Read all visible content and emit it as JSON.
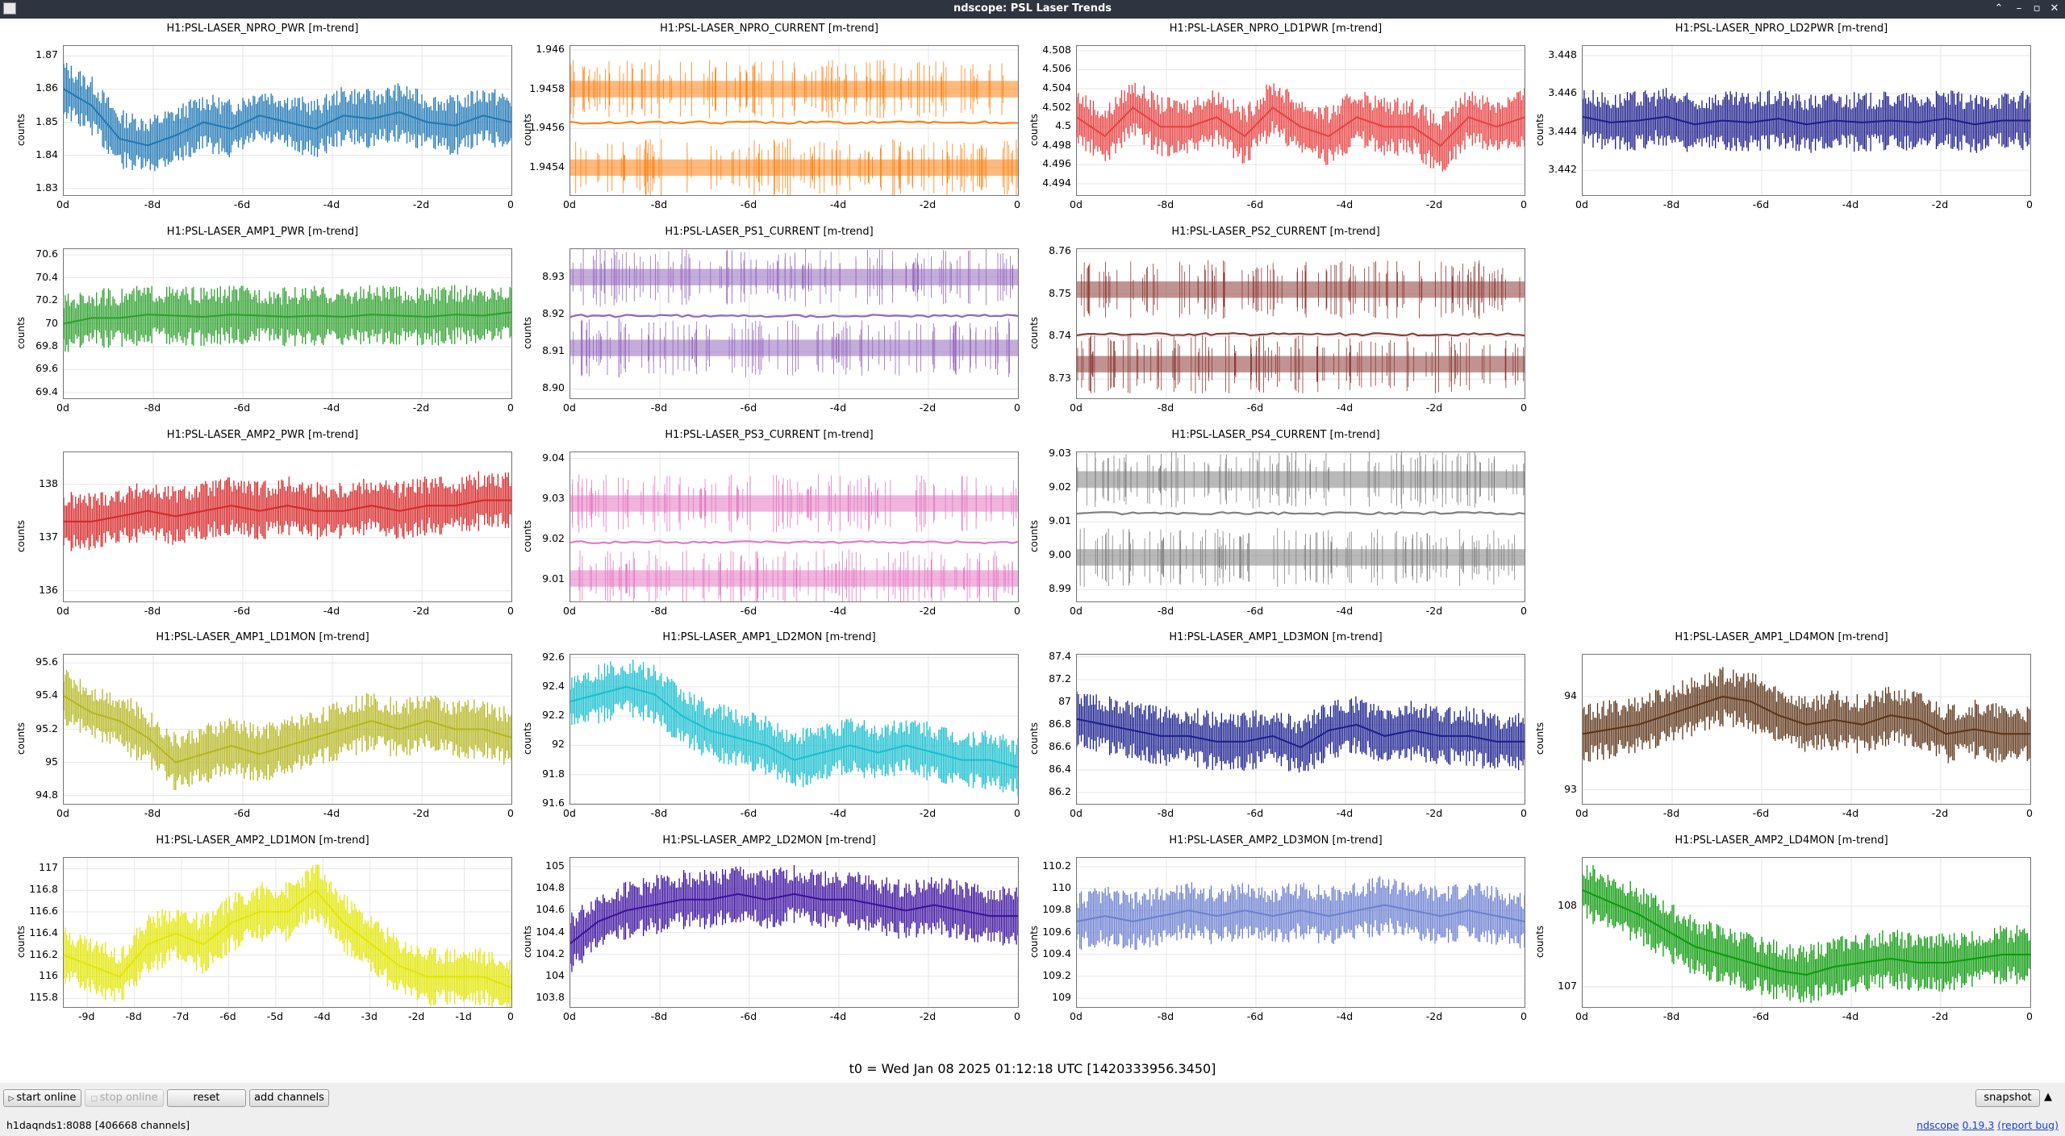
{
  "window": {
    "title": "ndscope: PSL Laser Trends"
  },
  "plots": [
    {
      "title": "H1:PSL-LASER_NPRO_PWR [m-trend]",
      "color": "#1f77b4",
      "ylabel": "counts",
      "yticks": [
        "1.87",
        "1.86",
        "1.85",
        "1.84",
        "1.83"
      ],
      "ylim": [
        1.828,
        1.873
      ],
      "xticks": [
        "0d",
        "-8d",
        "-6d",
        "-4d",
        "-2d",
        "0"
      ],
      "style": "noisy",
      "profile": [
        1.86,
        1.855,
        1.845,
        1.843,
        1.846,
        1.85,
        1.848,
        1.852,
        1.85,
        1.848,
        1.852,
        1.851,
        1.853,
        1.85,
        1.849,
        1.852,
        1.85
      ]
    },
    {
      "title": "H1:PSL-LASER_NPRO_CURRENT [m-trend]",
      "color": "#ff7f0e",
      "ylabel": "counts",
      "yticks": [
        "1.946",
        "1.9458",
        "1.9456",
        "1.9454"
      ],
      "ylim": [
        1.94526,
        1.94602
      ],
      "xticks": [
        "0d",
        "-8d",
        "-6d",
        "-4d",
        "-2d",
        "0"
      ],
      "style": "bands",
      "bands": [
        1.9458,
        1.94563,
        1.9454
      ]
    },
    {
      "title": "H1:PSL-LASER_NPRO_LD1PWR [m-trend]",
      "color": "#e84040",
      "ylabel": "counts",
      "yticks": [
        "4.508",
        "4.506",
        "4.504",
        "4.502",
        "4.5",
        "4.498",
        "4.496",
        "4.494"
      ],
      "ylim": [
        4.4928,
        4.5085
      ],
      "xticks": [
        "0d",
        "-8d",
        "-6d",
        "-4d",
        "-2d",
        "0"
      ],
      "style": "noisy",
      "profile": [
        4.501,
        4.499,
        4.502,
        4.5,
        4.5,
        4.501,
        4.499,
        4.502,
        4.5,
        4.499,
        4.501,
        4.5,
        4.5,
        4.498,
        4.501,
        4.5,
        4.501
      ]
    },
    {
      "title": "H1:PSL-LASER_NPRO_LD2PWR [m-trend]",
      "color": "#1c1c8c",
      "ylabel": "counts",
      "yticks": [
        "3.448",
        "3.446",
        "3.444",
        "3.442"
      ],
      "ylim": [
        3.4407,
        3.4485
      ],
      "xticks": [
        "0d",
        "-8d",
        "-6d",
        "-4d",
        "-2d",
        "0"
      ],
      "style": "noisy",
      "profile": [
        3.4448,
        3.4445,
        3.4446,
        3.4448,
        3.4444,
        3.4446,
        3.4445,
        3.4447,
        3.4444,
        3.4446,
        3.4445,
        3.4446,
        3.4445,
        3.4447,
        3.4444,
        3.4446,
        3.4446
      ]
    },
    {
      "title": "H1:PSL-LASER_AMP1_PWR [m-trend]",
      "color": "#2ca02c",
      "ylabel": "counts",
      "yticks": [
        "70.6",
        "70.4",
        "70.2",
        "70",
        "69.8",
        "69.6",
        "69.4"
      ],
      "ylim": [
        69.35,
        70.65
      ],
      "xticks": [
        "0d",
        "-8d",
        "-6d",
        "-4d",
        "-2d",
        "0"
      ],
      "style": "noisy",
      "profile": [
        70.0,
        70.05,
        70.05,
        70.08,
        70.07,
        70.06,
        70.08,
        70.07,
        70.06,
        70.07,
        70.06,
        70.08,
        70.07,
        70.06,
        70.08,
        70.07,
        70.1
      ]
    },
    {
      "title": "H1:PSL-LASER_PS1_CURRENT [m-trend]",
      "color": "#9467bd",
      "ylabel": "counts",
      "yticks": [
        "8.93",
        "8.92",
        "8.91",
        "8.90"
      ],
      "ylim": [
        8.8975,
        8.9375
      ],
      "xticks": [
        "0d",
        "-8d",
        "-6d",
        "-4d",
        "-2d",
        "0"
      ],
      "style": "bands",
      "bands": [
        8.93,
        8.9196,
        8.911
      ]
    },
    {
      "title": "H1:PSL-LASER_PS2_CURRENT [m-trend]",
      "color": "#8c3a34",
      "ylabel": "counts",
      "yticks": [
        "8.76",
        "8.75",
        "8.74",
        "8.73"
      ],
      "ylim": [
        8.7255,
        8.7605
      ],
      "xticks": [
        "0d",
        "-8d",
        "-6d",
        "-4d",
        "-2d",
        "0"
      ],
      "style": "bands",
      "bands": [
        8.751,
        8.7405,
        8.7335
      ]
    },
    null,
    {
      "title": "H1:PSL-LASER_AMP2_PWR [m-trend]",
      "color": "#d62728",
      "ylabel": "counts",
      "yticks": [
        "138",
        "137",
        "136"
      ],
      "ylim": [
        135.8,
        138.6
      ],
      "xticks": [
        "0d",
        "-8d",
        "-6d",
        "-4d",
        "-2d",
        "0"
      ],
      "style": "noisy",
      "profile": [
        137.3,
        137.3,
        137.4,
        137.5,
        137.4,
        137.5,
        137.6,
        137.5,
        137.6,
        137.5,
        137.5,
        137.6,
        137.5,
        137.6,
        137.6,
        137.7,
        137.7
      ]
    },
    {
      "title": "H1:PSL-LASER_PS3_CURRENT [m-trend]",
      "color": "#e377c2",
      "ylabel": "counts",
      "yticks": [
        "9.04",
        "9.03",
        "9.02",
        "9.01"
      ],
      "ylim": [
        9.0045,
        9.0415
      ],
      "xticks": [
        "0d",
        "-8d",
        "-6d",
        "-4d",
        "-2d",
        "0"
      ],
      "style": "bands",
      "bands": [
        9.0288,
        9.0192,
        9.0102
      ]
    },
    {
      "title": "H1:PSL-LASER_PS4_CURRENT [m-trend]",
      "color": "#7f7f7f",
      "ylabel": "counts",
      "yticks": [
        "9.03",
        "9.02",
        "9.01",
        "9.00",
        "8.99"
      ],
      "ylim": [
        8.9865,
        9.0305
      ],
      "xticks": [
        "0d",
        "-8d",
        "-6d",
        "-4d",
        "-2d",
        "0"
      ],
      "style": "bands",
      "bands": [
        9.0225,
        9.0125,
        8.9995
      ]
    },
    null,
    {
      "title": "H1:PSL-LASER_AMP1_LD1MON [m-trend]",
      "color": "#b5b620",
      "ylabel": "counts",
      "yticks": [
        "95.6",
        "95.4",
        "95.2",
        "95",
        "94.8"
      ],
      "ylim": [
        94.75,
        95.65
      ],
      "xticks": [
        "0d",
        "-8d",
        "-6d",
        "-4d",
        "-2d",
        "0"
      ],
      "style": "noisy",
      "profile": [
        95.4,
        95.3,
        95.25,
        95.15,
        95.0,
        95.05,
        95.1,
        95.05,
        95.1,
        95.15,
        95.2,
        95.25,
        95.2,
        95.25,
        95.2,
        95.2,
        95.15
      ]
    },
    {
      "title": "H1:PSL-LASER_AMP1_LD2MON [m-trend]",
      "color": "#17becf",
      "ylabel": "counts",
      "yticks": [
        "92.6",
        "92.4",
        "92.2",
        "92",
        "91.8",
        "91.6"
      ],
      "ylim": [
        91.6,
        92.62
      ],
      "xticks": [
        "0d",
        "-8d",
        "-6d",
        "-4d",
        "-2d",
        "0"
      ],
      "style": "noisy",
      "profile": [
        92.3,
        92.35,
        92.4,
        92.35,
        92.2,
        92.1,
        92.05,
        92.0,
        91.9,
        91.95,
        92.0,
        91.95,
        92.0,
        91.95,
        91.9,
        91.9,
        91.85
      ]
    },
    {
      "title": "H1:PSL-LASER_AMP1_LD3MON [m-trend]",
      "color": "#1a1f8e",
      "ylabel": "counts",
      "yticks": [
        "87.4",
        "87.2",
        "87",
        "86.8",
        "86.6",
        "86.4",
        "86.2"
      ],
      "ylim": [
        86.1,
        87.42
      ],
      "xticks": [
        "0d",
        "-8d",
        "-6d",
        "-4d",
        "-2d",
        "0"
      ],
      "style": "noisy",
      "profile": [
        86.85,
        86.8,
        86.75,
        86.7,
        86.7,
        86.65,
        86.65,
        86.7,
        86.6,
        86.75,
        86.8,
        86.7,
        86.75,
        86.7,
        86.7,
        86.65,
        86.65
      ]
    },
    {
      "title": "H1:PSL-LASER_AMP1_LD4MON [m-trend]",
      "color": "#5c3317",
      "ylabel": "counts",
      "yticks": [
        "94",
        "93"
      ],
      "ylim": [
        92.85,
        94.45
      ],
      "xticks": [
        "0d",
        "-8d",
        "-6d",
        "-4d",
        "-2d",
        "0"
      ],
      "style": "noisy",
      "profile": [
        93.6,
        93.65,
        93.7,
        93.8,
        93.9,
        94.0,
        93.95,
        93.8,
        93.7,
        93.75,
        93.7,
        93.8,
        93.75,
        93.6,
        93.65,
        93.6,
        93.6
      ]
    },
    {
      "title": "H1:PSL-LASER_AMP2_LD1MON [m-trend]",
      "color": "#e2e600",
      "ylabel": "counts",
      "yticks": [
        "117",
        "116.8",
        "116.6",
        "116.4",
        "116.2",
        "116",
        "115.8"
      ],
      "ylim": [
        115.72,
        117.1
      ],
      "xticks": [
        "-9d",
        "-8d",
        "-7d",
        "-6d",
        "-5d",
        "-4d",
        "-3d",
        "-2d",
        "-1d",
        "0"
      ],
      "style": "noisy",
      "profile": [
        116.2,
        116.1,
        116.0,
        116.3,
        116.4,
        116.3,
        116.5,
        116.6,
        116.6,
        116.8,
        116.5,
        116.3,
        116.1,
        116.0,
        116.0,
        116.0,
        115.9
      ]
    },
    {
      "title": "H1:PSL-LASER_AMP2_LD2MON [m-trend]",
      "color": "#3b0f9e",
      "ylabel": "counts",
      "yticks": [
        "105",
        "104.8",
        "104.6",
        "104.4",
        "104.2",
        "104",
        "103.8"
      ],
      "ylim": [
        103.72,
        105.08
      ],
      "xticks": [
        "0d",
        "-8d",
        "-6d",
        "-4d",
        "-2d",
        "0"
      ],
      "style": "noisy",
      "profile": [
        104.3,
        104.5,
        104.6,
        104.65,
        104.7,
        104.7,
        104.75,
        104.7,
        104.75,
        104.7,
        104.7,
        104.65,
        104.6,
        104.65,
        104.6,
        104.55,
        104.55
      ]
    },
    {
      "title": "H1:PSL-LASER_AMP2_LD3MON [m-trend]",
      "color": "#6b7fd0",
      "ylabel": "counts",
      "yticks": [
        "110.2",
        "110",
        "109.8",
        "109.6",
        "109.4",
        "109.2",
        "109"
      ],
      "ylim": [
        108.92,
        110.28
      ],
      "xticks": [
        "0d",
        "-8d",
        "-6d",
        "-4d",
        "-2d",
        "0"
      ],
      "style": "noisy",
      "profile": [
        109.7,
        109.75,
        109.7,
        109.75,
        109.8,
        109.75,
        109.8,
        109.75,
        109.8,
        109.75,
        109.8,
        109.85,
        109.8,
        109.75,
        109.8,
        109.75,
        109.7
      ]
    },
    {
      "title": "H1:PSL-LASER_AMP2_LD4MON [m-trend]",
      "color": "#0a9a0a",
      "ylabel": "counts",
      "yticks": [
        "108",
        "107"
      ],
      "ylim": [
        106.75,
        108.6
      ],
      "xticks": [
        "0d",
        "-8d",
        "-6d",
        "-4d",
        "-2d",
        "0"
      ],
      "style": "noisy",
      "profile": [
        108.2,
        108.05,
        107.9,
        107.7,
        107.5,
        107.4,
        107.3,
        107.2,
        107.15,
        107.25,
        107.3,
        107.35,
        107.3,
        107.3,
        107.35,
        107.4,
        107.4
      ]
    }
  ],
  "t0_label": "t0 = Wed Jan 08 2025 01:12:18 UTC [1420333956.3450]",
  "buttons": {
    "start_online": "start online",
    "stop_online": "stop online",
    "reset": "reset",
    "add_channels": "add channels",
    "snapshot": "snapshot"
  },
  "status": {
    "server": "h1daqnds1:8088  [406668 channels]",
    "app_link": "ndscope",
    "version_link": "0.19.3",
    "report_bug": "(report bug)"
  }
}
